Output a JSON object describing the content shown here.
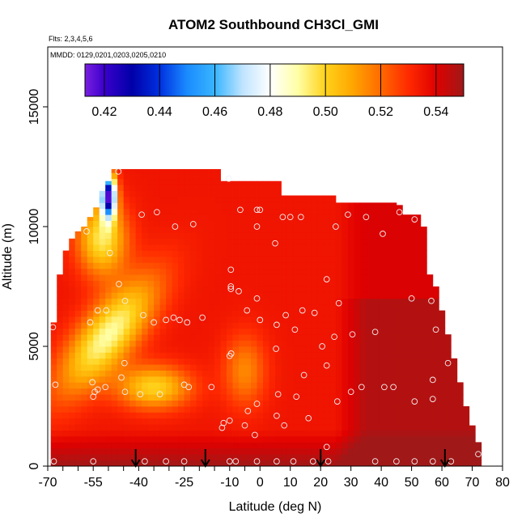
{
  "chart_data": {
    "type": "heatmap",
    "title": "ATOM2 Southbound CH3Cl_GMI",
    "flights_note": "Flts: 2,3,4,5,6",
    "dates_note": "MMDD: 0129,0201,0203,0205,0210",
    "xlabel": "Latitude (deg N)",
    "ylabel": "Altitude (m)",
    "xlim": [
      -70,
      80
    ],
    "ylim": [
      0,
      17500
    ],
    "x_ticks": [
      -70,
      -55,
      -40,
      -25,
      -10,
      0,
      10,
      20,
      30,
      40,
      50,
      60,
      70,
      80
    ],
    "x_tick_labels": [
      "-70",
      "-55",
      "-40",
      "-25",
      "-10",
      "0",
      "10",
      "20",
      "30",
      "40",
      "50",
      "60",
      "70",
      "80"
    ],
    "x_minor_ticks": [
      -65,
      -60,
      -50,
      -45,
      -35,
      -30,
      -20,
      -15,
      -5
    ],
    "y_ticks": [
      0,
      5000,
      10000,
      15000
    ],
    "y_tick_labels": [
      "0",
      "5000",
      "10000",
      "15000"
    ],
    "colorbar": {
      "range": [
        0.413,
        0.55
      ],
      "tick_values": [
        0.42,
        0.44,
        0.46,
        0.48,
        0.5,
        0.52,
        0.54
      ],
      "tick_labels": [
        "0.42",
        "0.44",
        "0.46",
        "0.48",
        "0.50",
        "0.52",
        "0.54"
      ],
      "colors": [
        {
          "v": 0.413,
          "c": "#7b1fe0"
        },
        {
          "v": 0.42,
          "c": "#3a00cc"
        },
        {
          "v": 0.43,
          "c": "#0000a8"
        },
        {
          "v": 0.44,
          "c": "#0030e0"
        },
        {
          "v": 0.45,
          "c": "#1a8cff"
        },
        {
          "v": 0.46,
          "c": "#39b5ff"
        },
        {
          "v": 0.47,
          "c": "#bfe4ff"
        },
        {
          "v": 0.48,
          "c": "#ffffff"
        },
        {
          "v": 0.49,
          "c": "#ffffa6"
        },
        {
          "v": 0.5,
          "c": "#ffd21a"
        },
        {
          "v": 0.51,
          "c": "#ffa500"
        },
        {
          "v": 0.52,
          "c": "#ff6a00"
        },
        {
          "v": 0.53,
          "c": "#ff2a00"
        },
        {
          "v": 0.54,
          "c": "#e00000"
        },
        {
          "v": 0.55,
          "c": "#a01818"
        }
      ]
    },
    "profiles": [
      {
        "lat": -68,
        "top": 6000
      },
      {
        "lat": -66,
        "top": 8000
      },
      {
        "lat": -64,
        "top": 9000
      },
      {
        "lat": -62,
        "top": 9500
      },
      {
        "lat": -60,
        "top": 9800
      },
      {
        "lat": -58,
        "top": 10000
      },
      {
        "lat": -56,
        "top": 10400
      },
      {
        "lat": -54,
        "top": 10800
      },
      {
        "lat": -52,
        "top": 11600
      },
      {
        "lat": -50,
        "top": 11900
      },
      {
        "lat": -48,
        "top": 12400
      },
      {
        "lat": -46,
        "top": 12400
      },
      {
        "lat": -44,
        "top": 12400
      },
      {
        "lat": -42,
        "top": 12400
      },
      {
        "lat": -40,
        "top": 12400
      },
      {
        "lat": -38,
        "top": 12400
      },
      {
        "lat": -36,
        "top": 12400
      },
      {
        "lat": -34,
        "top": 12400
      },
      {
        "lat": -32,
        "top": 12400
      },
      {
        "lat": -30,
        "top": 12400
      },
      {
        "lat": -28,
        "top": 12400
      },
      {
        "lat": -26,
        "top": 12400
      },
      {
        "lat": -24,
        "top": 12400
      },
      {
        "lat": -22,
        "top": 12400
      },
      {
        "lat": -20,
        "top": 12400
      },
      {
        "lat": -18,
        "top": 12400
      },
      {
        "lat": -16,
        "top": 12400
      },
      {
        "lat": -14,
        "top": 12400
      },
      {
        "lat": -12,
        "top": 11900
      },
      {
        "lat": -10,
        "top": 11900
      },
      {
        "lat": -8,
        "top": 11900
      },
      {
        "lat": -6,
        "top": 11900
      },
      {
        "lat": -4,
        "top": 11900
      },
      {
        "lat": -2,
        "top": 11900
      },
      {
        "lat": 0,
        "top": 11900
      },
      {
        "lat": 2,
        "top": 11900
      },
      {
        "lat": 4,
        "top": 11900
      },
      {
        "lat": 6,
        "top": 11900
      },
      {
        "lat": 8,
        "top": 11300
      },
      {
        "lat": 10,
        "top": 11300
      },
      {
        "lat": 12,
        "top": 11300
      },
      {
        "lat": 14,
        "top": 11300
      },
      {
        "lat": 16,
        "top": 11300
      },
      {
        "lat": 18,
        "top": 11300
      },
      {
        "lat": 20,
        "top": 11300
      },
      {
        "lat": 22,
        "top": 11300
      },
      {
        "lat": 24,
        "top": 11300
      },
      {
        "lat": 26,
        "top": 11000
      },
      {
        "lat": 28,
        "top": 11000
      },
      {
        "lat": 30,
        "top": 11000
      },
      {
        "lat": 32,
        "top": 11000
      },
      {
        "lat": 34,
        "top": 11000
      },
      {
        "lat": 36,
        "top": 11000
      },
      {
        "lat": 38,
        "top": 11000
      },
      {
        "lat": 40,
        "top": 11000
      },
      {
        "lat": 42,
        "top": 11000
      },
      {
        "lat": 44,
        "top": 11000
      },
      {
        "lat": 46,
        "top": 10900
      },
      {
        "lat": 48,
        "top": 10500
      },
      {
        "lat": 50,
        "top": 10500
      },
      {
        "lat": 52,
        "top": 10500
      },
      {
        "lat": 54,
        "top": 10000
      },
      {
        "lat": 56,
        "top": 8000
      },
      {
        "lat": 58,
        "top": 7500
      },
      {
        "lat": 60,
        "top": 6500
      },
      {
        "lat": 62,
        "top": 5500
      },
      {
        "lat": 64,
        "top": 4500
      },
      {
        "lat": 66,
        "top": 3500
      },
      {
        "lat": 68,
        "top": 2500
      },
      {
        "lat": 70,
        "top": 1700
      },
      {
        "lat": 72,
        "top": 1000
      }
    ],
    "samples": [
      [
        -46.7,
        12300
      ],
      [
        -39,
        10500
      ],
      [
        -34,
        10600
      ],
      [
        -28,
        10000
      ],
      [
        -22,
        10100
      ],
      [
        -57.2,
        9800
      ],
      [
        -49.5,
        8900
      ],
      [
        -46.5,
        7600
      ],
      [
        -10.3,
        12000
      ],
      [
        -1,
        10700
      ],
      [
        0,
        10700
      ],
      [
        7.5,
        10400
      ],
      [
        10,
        10400
      ],
      [
        13.5,
        10400
      ],
      [
        5,
        9300
      ],
      [
        -1,
        10000
      ],
      [
        -6.5,
        10700
      ],
      [
        25,
        10000
      ],
      [
        29,
        10500
      ],
      [
        35,
        10400
      ],
      [
        40.5,
        9700
      ],
      [
        46,
        10600
      ],
      [
        51,
        10300
      ],
      [
        -9.6,
        8200
      ],
      [
        -9.6,
        7500
      ],
      [
        -9.6,
        7400
      ],
      [
        -7,
        7300
      ],
      [
        -1,
        7000
      ],
      [
        22,
        7800
      ],
      [
        26,
        6800
      ],
      [
        8.5,
        6300
      ],
      [
        14,
        6500
      ],
      [
        18,
        6400
      ],
      [
        -19,
        6200
      ],
      [
        -24,
        6000
      ],
      [
        -26.5,
        6100
      ],
      [
        -28.5,
        6200
      ],
      [
        -31,
        6100
      ],
      [
        -35,
        6000
      ],
      [
        -38.5,
        6300
      ],
      [
        -44.5,
        6900
      ],
      [
        -50.7,
        6500
      ],
      [
        -53.5,
        6500
      ],
      [
        -56,
        6000
      ],
      [
        -68.3,
        5800
      ],
      [
        -10,
        4600
      ],
      [
        -9.5,
        4700
      ],
      [
        -4.3,
        6500
      ],
      [
        0,
        6100
      ],
      [
        5.5,
        5900
      ],
      [
        11.5,
        5700
      ],
      [
        5.3,
        4900
      ],
      [
        24.5,
        5400
      ],
      [
        30.5,
        5500
      ],
      [
        38,
        5600
      ],
      [
        50,
        7000
      ],
      [
        56.5,
        6900
      ],
      [
        58,
        5700
      ],
      [
        62,
        4300
      ],
      [
        20.5,
        5000
      ],
      [
        14.5,
        3800
      ],
      [
        22,
        4200
      ],
      [
        -44.7,
        4300
      ],
      [
        -45.7,
        3700
      ],
      [
        -55.3,
        3500
      ],
      [
        -54.5,
        3100
      ],
      [
        -53.5,
        3200
      ],
      [
        -55,
        2900
      ],
      [
        -51,
        3300
      ],
      [
        -44.5,
        3100
      ],
      [
        -39.5,
        3000
      ],
      [
        -33,
        3000
      ],
      [
        -25,
        3400
      ],
      [
        -23.5,
        3300
      ],
      [
        -16,
        3300
      ],
      [
        -67.5,
        3400
      ],
      [
        6,
        3000
      ],
      [
        33.5,
        3300
      ],
      [
        41,
        3300
      ],
      [
        44,
        3300
      ],
      [
        30,
        3100
      ],
      [
        57,
        3600
      ],
      [
        57,
        2800
      ],
      [
        51,
        2700
      ],
      [
        25.5,
        2700
      ],
      [
        -1,
        2600
      ],
      [
        12,
        2900
      ],
      [
        -4,
        2300
      ],
      [
        5.5,
        2100
      ],
      [
        -10,
        1900
      ],
      [
        -12,
        1800
      ],
      [
        -12.5,
        1600
      ],
      [
        -5,
        1700
      ],
      [
        8,
        1700
      ],
      [
        16,
        2000
      ],
      [
        -1.7,
        1300
      ],
      [
        22,
        800
      ],
      [
        -68,
        200
      ],
      [
        -55,
        200
      ],
      [
        -38,
        200
      ],
      [
        -31,
        200
      ],
      [
        -25,
        200
      ],
      [
        -10,
        200
      ],
      [
        -8,
        200
      ],
      [
        -1,
        200
      ],
      [
        5.5,
        200
      ],
      [
        11,
        200
      ],
      [
        17.5,
        200
      ],
      [
        22.5,
        200
      ],
      [
        38,
        200
      ],
      [
        45,
        200
      ],
      [
        51,
        200
      ],
      [
        57,
        200
      ],
      [
        63,
        200
      ],
      [
        72,
        500
      ]
    ],
    "arrows_lat": [
      -41,
      -18,
      20,
      61
    ]
  }
}
